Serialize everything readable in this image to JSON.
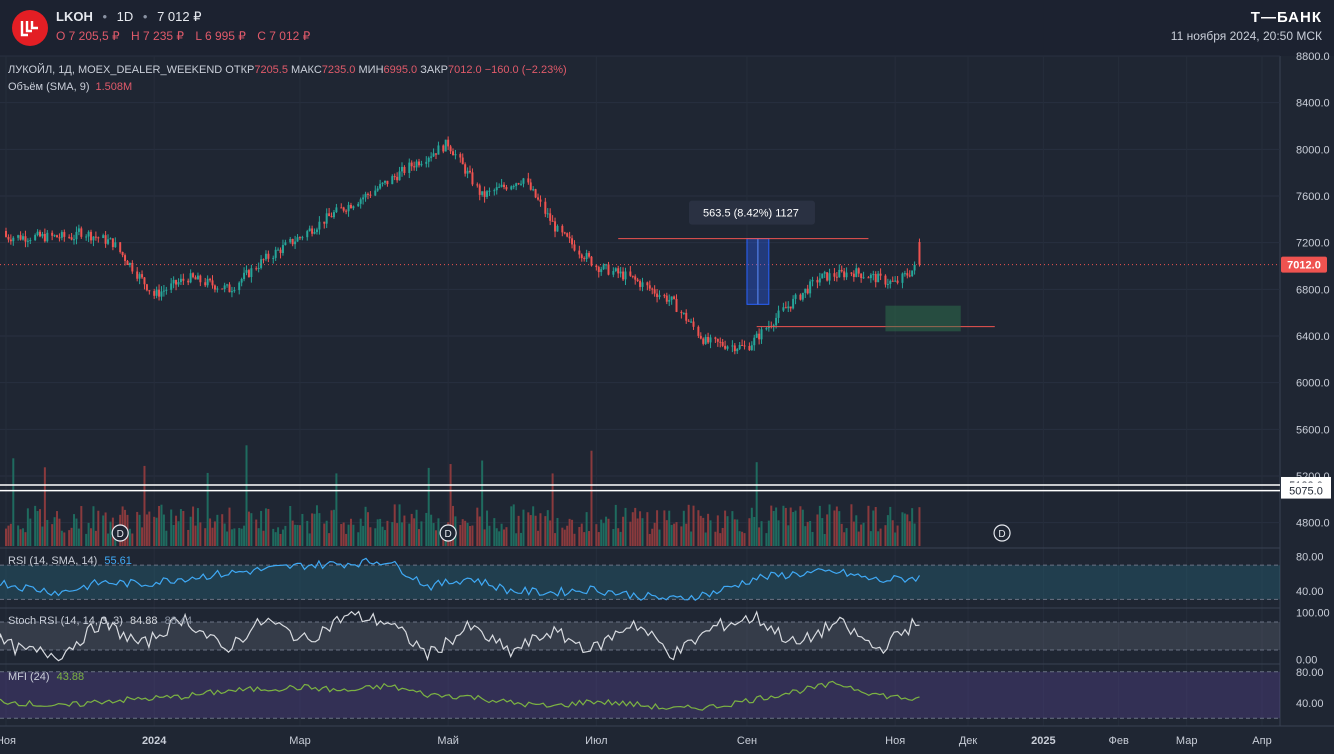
{
  "header": {
    "ticker": "LKOH",
    "interval": "1D",
    "price": "7 012 ₽",
    "open": "O 7 205,5 ₽",
    "high": "H 7 235 ₽",
    "low": "L 6 995 ₽",
    "close": "C 7 012 ₽",
    "brand": "Т—БАНК",
    "timestamp": "11 ноября 2024, 20:50 МСК"
  },
  "legend": {
    "name": "ЛУКОЙЛ, 1Д, MOEX_DEALER_WEEKEND",
    "open_label": "ОТКР",
    "open_value": "7205.5",
    "high_label": "МАКС",
    "high_value": "7235.0",
    "low_label": "МИН",
    "low_value": "6995.0",
    "close_label": "ЗАКР",
    "close_value": "7012.0",
    "change": "−160.0 (−2.23%)",
    "volume_label": "Объём (SMA, 9)",
    "volume_value": "1.508M"
  },
  "measure_label": "563.5 (8.42%) 1127",
  "current_price_label": "7012.0",
  "white_lines": [
    "5123.0",
    "5075.0"
  ],
  "dividend_marker": "D",
  "indicators": {
    "rsi_label": "RSI (14, SMA, 14)",
    "rsi_value": "55.61",
    "stoch_label": "Stoch RSI (14, 14, 3, 3)",
    "stoch_k": "84.88",
    "stoch_d": "88.44",
    "mfi_label": "MFI (24)",
    "mfi_value": "43.88"
  },
  "colors": {
    "background": "#1f2633",
    "up": "#26a69a",
    "down": "#ef5350",
    "rsi": "#3fa9f5",
    "mfi": "#7cb342",
    "stoch": "#d8dbe0",
    "measure_fill": "#2962ff",
    "zone_fill": "#2e7d4f"
  },
  "chart_data": [
    {
      "type": "line",
      "title": "ЛУКОЙЛ, 1Д",
      "x": [
        "2023-12-01",
        "2023-12-15",
        "2024-01-01",
        "2024-01-15",
        "2024-02-01",
        "2024-02-15",
        "2024-03-01",
        "2024-03-15",
        "2024-04-01",
        "2024-04-15",
        "2024-05-01",
        "2024-05-15",
        "2024-06-01",
        "2024-06-15",
        "2024-07-01",
        "2024-07-15",
        "2024-08-01",
        "2024-08-15",
        "2024-09-01",
        "2024-09-15",
        "2024-10-01",
        "2024-10-15",
        "2024-11-01",
        "2024-11-11"
      ],
      "series": [
        {
          "values": [
            7300,
            7200,
            6750,
            6900,
            6800,
            7050,
            7250,
            7450,
            7650,
            7850,
            8050,
            7600,
            7750,
            7300,
            7000,
            6900,
            6700,
            6350,
            6300,
            6600,
            6900,
            6950,
            6850,
            7012
          ]
        }
      ],
      "ylim": [
        4600,
        8800
      ],
      "y_ticks": [
        "8800.0",
        "8400.0",
        "8000.0",
        "7600.0",
        "7200.0",
        "6800.0",
        "6400.0",
        "6000.0",
        "5600.0",
        "5200.0",
        "4800.0"
      ],
      "x_ticks": [
        "Ноя",
        "2024",
        "Мар",
        "Май",
        "Июл",
        "Сен",
        "Ноя",
        "Дек",
        "2025",
        "Фев",
        "Мар",
        "Апр"
      ],
      "last": 7012.0,
      "grid": true
    },
    {
      "type": "line",
      "title": "RSI (14, SMA, 14)",
      "ylim": [
        20,
        90
      ],
      "y_ticks": [
        "80.00",
        "40.00"
      ],
      "series": [
        {
          "name": "RSI",
          "values": [
            55,
            45,
            38,
            50,
            48,
            55,
            60,
            65,
            70,
            72,
            75,
            45,
            55,
            40,
            38,
            42,
            35,
            30,
            38,
            55,
            60,
            62,
            52,
            55.61
          ]
        }
      ]
    },
    {
      "type": "line",
      "title": "Stoch RSI (14, 14, 3, 3)",
      "ylim": [
        -10,
        110
      ],
      "y_ticks": [
        "100.00",
        "0.00"
      ],
      "series": [
        {
          "name": "K",
          "values": [
            60,
            20,
            10,
            80,
            30,
            90,
            20,
            85,
            40,
            95,
            80,
            10,
            70,
            15,
            60,
            20,
            80,
            10,
            70,
            90,
            30,
            80,
            20,
            84.88
          ]
        }
      ]
    },
    {
      "type": "line",
      "title": "MFI (24)",
      "ylim": [
        10,
        90
      ],
      "y_ticks": [
        "80.00",
        "40.00"
      ],
      "series": [
        {
          "name": "MFI",
          "values": [
            45,
            40,
            35,
            42,
            45,
            48,
            55,
            58,
            60,
            55,
            62,
            50,
            48,
            40,
            35,
            42,
            38,
            32,
            35,
            45,
            55,
            65,
            50,
            43.88
          ]
        }
      ]
    }
  ]
}
